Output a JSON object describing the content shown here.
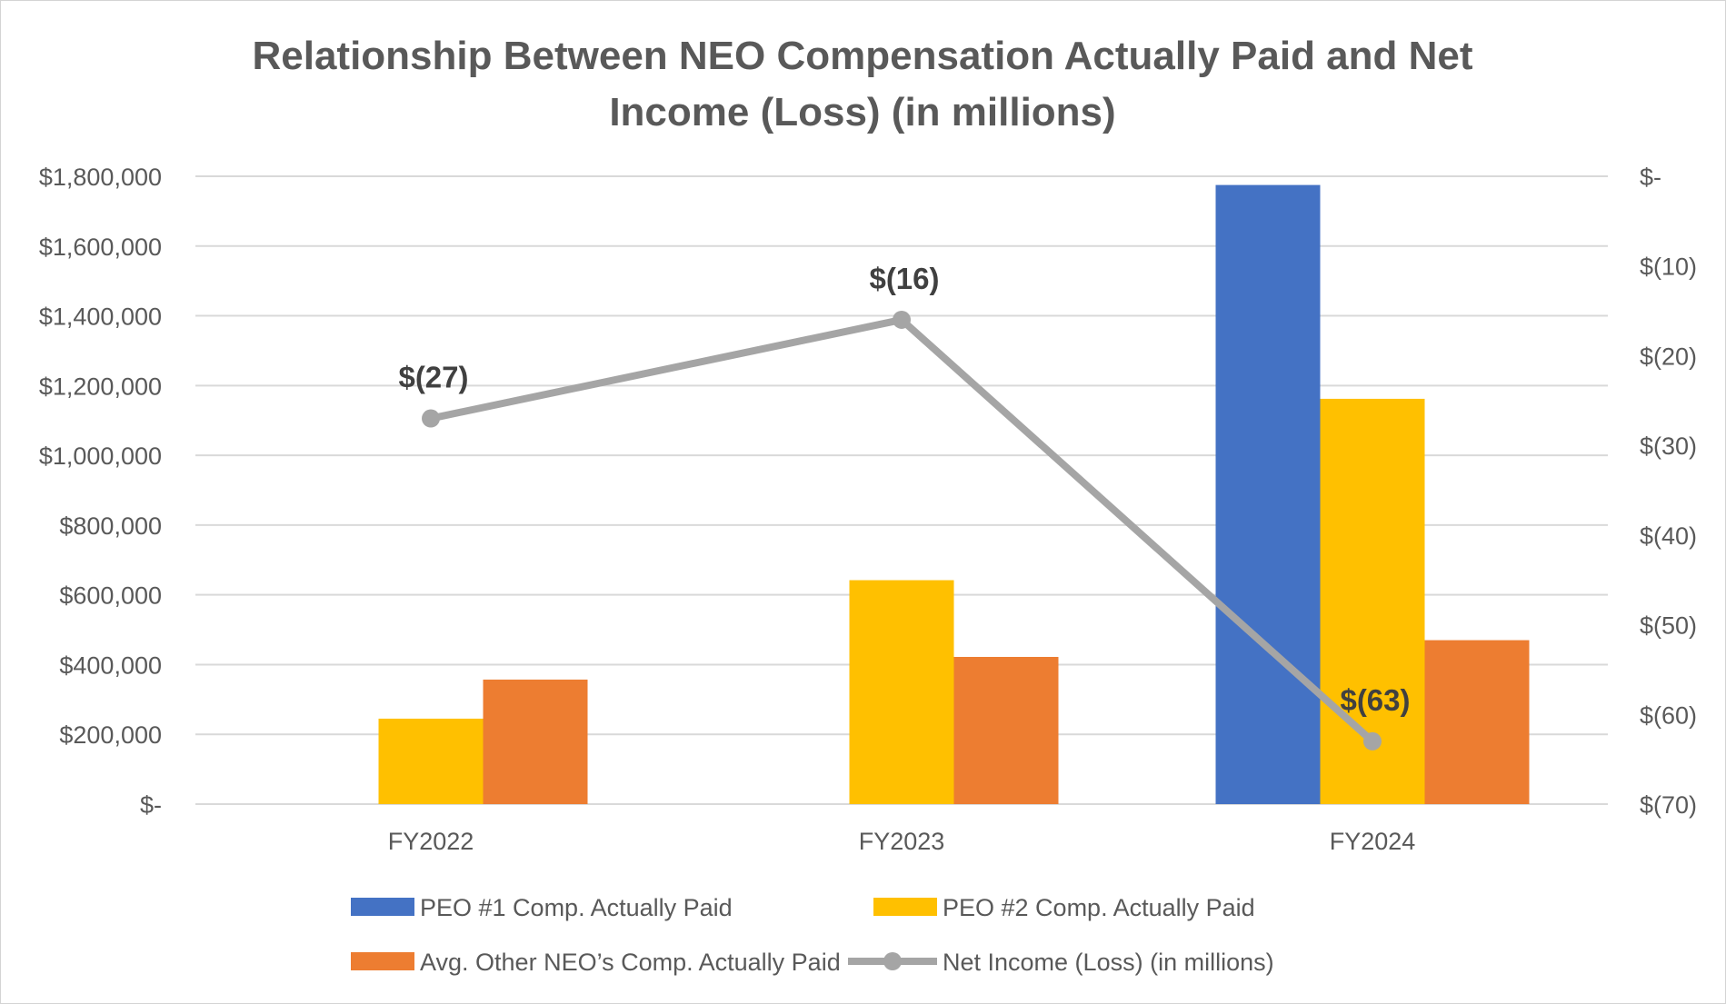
{
  "chart_data": {
    "type": "bar",
    "title": "Relationship Between NEO Compensation Actually Paid and Net Income (Loss) (in millions)",
    "title_lines": [
      "Relationship Between NEO Compensation Actually Paid and Net",
      "Income (Loss) (in millions)"
    ],
    "categories": [
      "FY2022",
      "FY2023",
      "FY2024"
    ],
    "series": [
      {
        "name": "PEO #1 Comp. Actually Paid",
        "type": "bar",
        "axis": "left",
        "color": "#4472C4",
        "values": [
          0,
          0,
          1775000
        ]
      },
      {
        "name": "PEO #2 Comp. Actually Paid",
        "type": "bar",
        "axis": "left",
        "color": "#FFC000",
        "values": [
          245000,
          642000,
          1162000
        ]
      },
      {
        "name": "Avg. Other NEO’s Comp. Actually Paid",
        "type": "bar",
        "axis": "left",
        "color": "#ED7D31",
        "values": [
          357000,
          422000,
          470000
        ]
      },
      {
        "name": "Net Income (Loss) (in millions)",
        "type": "line",
        "axis": "right",
        "color": "#A5A5A5",
        "values": [
          -27,
          -16,
          -63
        ],
        "data_labels": [
          "$(27)",
          "$(16)",
          "$(63)"
        ]
      }
    ],
    "left_axis": {
      "ylim": [
        0,
        1800000
      ],
      "tick_values": [
        0,
        200000,
        400000,
        600000,
        800000,
        1000000,
        1200000,
        1400000,
        1600000,
        1800000
      ],
      "tick_labels": [
        "$-",
        "$200,000",
        "$400,000",
        "$600,000",
        "$800,000",
        "$1,000,000",
        "$1,200,000",
        "$1,400,000",
        "$1,600,000",
        "$1,800,000"
      ]
    },
    "right_axis": {
      "ylim": [
        -70,
        0
      ],
      "tick_values": [
        0,
        -10,
        -20,
        -30,
        -40,
        -50,
        -60,
        -70
      ],
      "tick_labels": [
        "$-",
        "$(10)",
        "$(20)",
        "$(30)",
        "$(40)",
        "$(50)",
        "$(60)",
        "$(70)"
      ]
    },
    "grid": true,
    "legend_position": "bottom"
  }
}
